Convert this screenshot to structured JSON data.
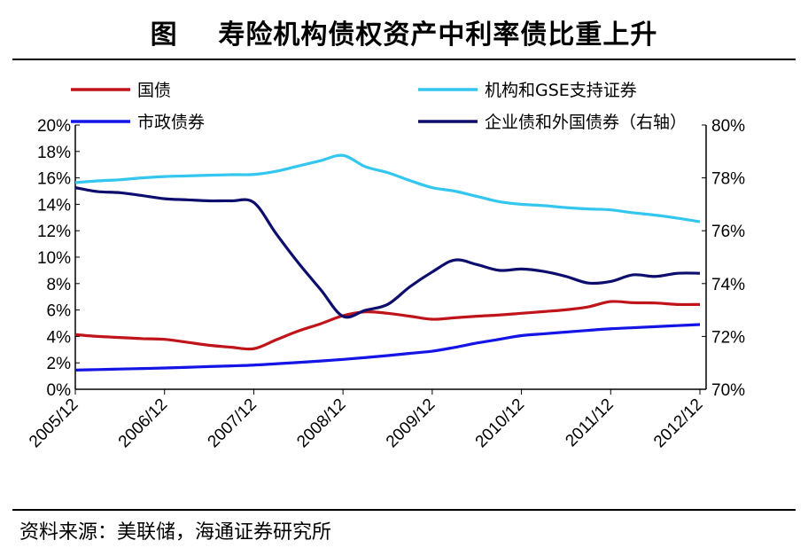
{
  "title": "图    寿险机构债权资产中利率债比重上升",
  "source": "资料来源：美联储，海通证券研究所",
  "chart_data": {
    "type": "line",
    "title": "图    寿险机构债权资产中利率债比重上升",
    "x": [
      "2005/12",
      "2006/3",
      "2006/6",
      "2006/9",
      "2006/12",
      "2007/3",
      "2007/6",
      "2007/9",
      "2007/12",
      "2008/3",
      "2008/6",
      "2008/9",
      "2008/12",
      "2009/3",
      "2009/6",
      "2009/9",
      "2009/12",
      "2010/3",
      "2010/6",
      "2010/9",
      "2010/12",
      "2011/3",
      "2011/6",
      "2011/9",
      "2011/12",
      "2012/3",
      "2012/6",
      "2012/9",
      "2012/12"
    ],
    "x_tick_labels": [
      "2005/12",
      "2006/12",
      "2007/12",
      "2008/12",
      "2009/12",
      "2010/12",
      "2011/12",
      "2012/12"
    ],
    "y_left": {
      "ylim": [
        0,
        20
      ],
      "ticks": [
        "0%",
        "2%",
        "4%",
        "6%",
        "8%",
        "10%",
        "12%",
        "14%",
        "16%",
        "18%",
        "20%"
      ]
    },
    "y_right": {
      "ylim": [
        70,
        80
      ],
      "ticks": [
        "70%",
        "72%",
        "74%",
        "76%",
        "78%",
        "80%"
      ]
    },
    "series": [
      {
        "name": "国债",
        "axis": "left",
        "color": "#C0141B",
        "values": [
          4.14,
          4.0,
          3.92,
          3.83,
          3.78,
          3.56,
          3.33,
          3.18,
          3.07,
          3.74,
          4.41,
          4.96,
          5.57,
          5.86,
          5.75,
          5.53,
          5.3,
          5.41,
          5.53,
          5.62,
          5.75,
          5.88,
          6.02,
          6.24,
          6.64,
          6.55,
          6.53,
          6.42,
          6.42
        ]
      },
      {
        "name": "机构和GSE支持证券",
        "axis": "left",
        "color": "#33C6EE",
        "values": [
          15.64,
          15.77,
          15.86,
          16.0,
          16.1,
          16.15,
          16.2,
          16.24,
          16.26,
          16.5,
          16.9,
          17.3,
          17.7,
          16.85,
          16.4,
          15.8,
          15.26,
          15.0,
          14.6,
          14.2,
          14.0,
          13.9,
          13.75,
          13.65,
          13.58,
          13.36,
          13.18,
          12.95,
          12.68
        ]
      },
      {
        "name": "市政债券",
        "axis": "left",
        "color": "#1414E6",
        "values": [
          1.45,
          1.49,
          1.53,
          1.57,
          1.61,
          1.66,
          1.72,
          1.77,
          1.83,
          1.93,
          2.03,
          2.14,
          2.26,
          2.4,
          2.55,
          2.72,
          2.88,
          3.17,
          3.5,
          3.78,
          4.06,
          4.2,
          4.33,
          4.46,
          4.58,
          4.66,
          4.74,
          4.82,
          4.9
        ]
      },
      {
        "name": "企业债和外国债券（右轴）",
        "axis": "right",
        "color": "#0D0D6E",
        "values": [
          77.63,
          77.48,
          77.44,
          77.33,
          77.21,
          77.17,
          77.13,
          77.13,
          77.07,
          75.89,
          74.78,
          73.77,
          72.76,
          72.99,
          73.21,
          73.88,
          74.44,
          74.89,
          74.72,
          74.5,
          74.55,
          74.46,
          74.27,
          74.02,
          74.08,
          74.33,
          74.27,
          74.39,
          74.39
        ]
      }
    ],
    "legend_placement": "top",
    "grid": false
  }
}
